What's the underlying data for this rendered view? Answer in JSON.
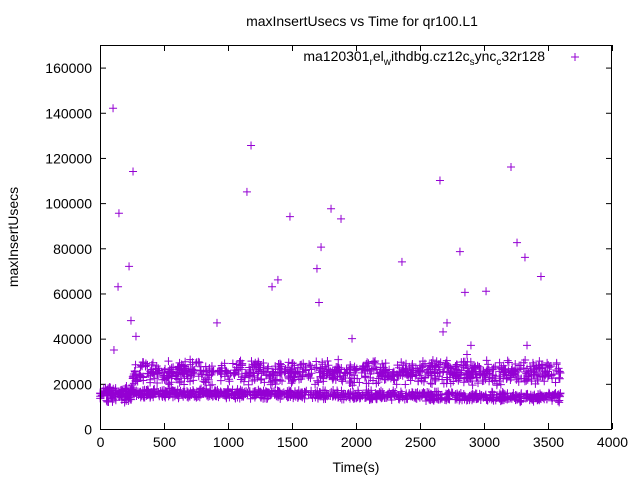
{
  "chart_data": {
    "type": "scatter",
    "title": "maxInsertUsecs vs Time for qr100.L1",
    "xlabel": "Time(s)",
    "ylabel": "maxInsertUsecs",
    "xlim": [
      0,
      4000
    ],
    "ylim": [
      0,
      170000
    ],
    "xticks": [
      0,
      500,
      1000,
      1500,
      2000,
      2500,
      3000,
      3500,
      4000
    ],
    "yticks": [
      0,
      20000,
      40000,
      60000,
      80000,
      100000,
      120000,
      140000,
      160000
    ],
    "grid": false,
    "legend": {
      "position": "top-right",
      "label": "ma120301_rel_withdbg.cz12c_sync_c32r128"
    },
    "color": "#9400d3",
    "series": [
      {
        "name": "ma120301_rel_withdbg.cz12c_sync_c32r128",
        "outliers": [
          [
            102,
            142000
          ],
          [
            148,
            95500
          ],
          [
            141,
            63000
          ],
          [
            227,
            72000
          ],
          [
            242,
            48000
          ],
          [
            258,
            114000
          ],
          [
            281,
            41000
          ],
          [
            109,
            35000
          ],
          [
            914,
            47000
          ],
          [
            1148,
            105000
          ],
          [
            1180,
            125500
          ],
          [
            1344,
            63000
          ],
          [
            1390,
            66000
          ],
          [
            1484,
            94000
          ],
          [
            1695,
            71000
          ],
          [
            1711,
            56000
          ],
          [
            1727,
            80500
          ],
          [
            1805,
            97500
          ],
          [
            1883,
            93000
          ],
          [
            1969,
            40000
          ],
          [
            2359,
            74000
          ],
          [
            2656,
            110000
          ],
          [
            2680,
            43000
          ],
          [
            2711,
            47000
          ],
          [
            2812,
            78500
          ],
          [
            2851,
            60500
          ],
          [
            2867,
            33000
          ],
          [
            2898,
            37000
          ],
          [
            3016,
            61000
          ],
          [
            3211,
            116000
          ],
          [
            3258,
            82500
          ],
          [
            3320,
            76000
          ],
          [
            3336,
            37000
          ],
          [
            3445,
            67500
          ]
        ],
        "bulk_bands": [
          {
            "t": [
              0,
              250
            ],
            "y": [
              11000,
              20000
            ],
            "count": 120
          },
          {
            "t": [
              250,
              3600
            ],
            "y": [
              19000,
              31000
            ],
            "count": 900
          },
          {
            "t": [
              250,
              3600
            ],
            "y_start": [
              13500,
              18500
            ],
            "y_end": [
              11500,
              16500
            ],
            "count": 900
          }
        ]
      }
    ]
  }
}
